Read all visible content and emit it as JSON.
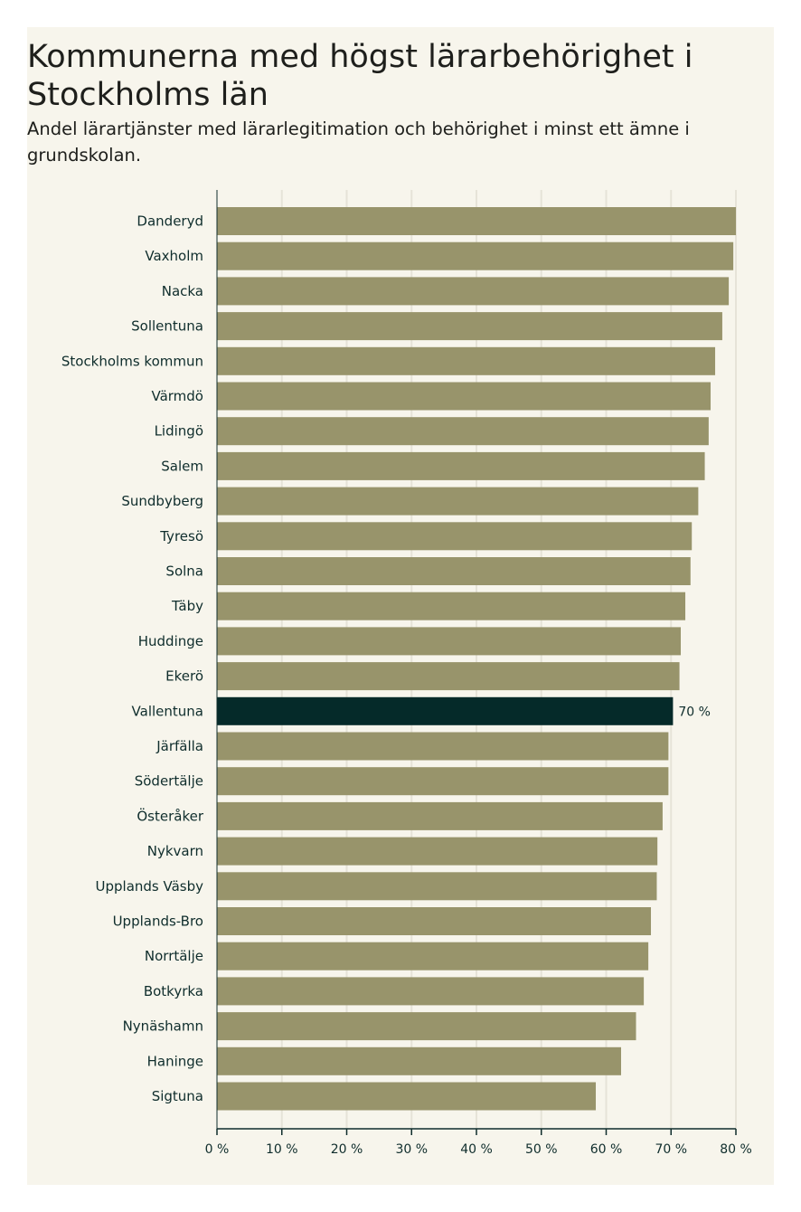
{
  "chart_data": {
    "type": "bar",
    "orientation": "horizontal",
    "title": "Kommunerna med högst lärarbehörighet i Stockholms län",
    "subtitle": "Andel lärartjänster med lärarlegitimation och behörighet i minst ett ämne i grundskolan.",
    "categories": [
      "Danderyd",
      "Vaxholm",
      "Nacka",
      "Sollentuna",
      "Stockholms kommun",
      "Värmdö",
      "Lidingö",
      "Salem",
      "Sundbyberg",
      "Tyresö",
      "Solna",
      "Täby",
      "Huddinge",
      "Ekerö",
      "Vallentuna",
      "Järfälla",
      "Södertälje",
      "Österåker",
      "Nykvarn",
      "Upplands Väsby",
      "Upplands-Bro",
      "Norrtälje",
      "Botkyrka",
      "Nynäshamn",
      "Haninge",
      "Sigtuna"
    ],
    "values": [
      80.0,
      79.6,
      78.9,
      77.9,
      76.8,
      76.1,
      75.8,
      75.2,
      74.2,
      73.2,
      73.0,
      72.2,
      71.5,
      71.3,
      70.3,
      69.6,
      69.6,
      68.7,
      67.9,
      67.8,
      66.9,
      66.5,
      65.8,
      64.6,
      62.3,
      58.4
    ],
    "highlight": "Vallentuna",
    "highlight_label": "70 %",
    "xlim": [
      0,
      80
    ],
    "ticks": [
      0,
      10,
      20,
      30,
      40,
      50,
      60,
      70,
      80
    ],
    "tick_labels": [
      "0 %",
      "10 %",
      "20 %",
      "30 %",
      "40 %",
      "50 %",
      "60 %",
      "70 %",
      "80 %"
    ],
    "grid": true,
    "colors": {
      "bar": "#98946b",
      "highlight": "#052a29",
      "grid": "#e6e3d8",
      "axis": "#0f2d2c"
    }
  }
}
